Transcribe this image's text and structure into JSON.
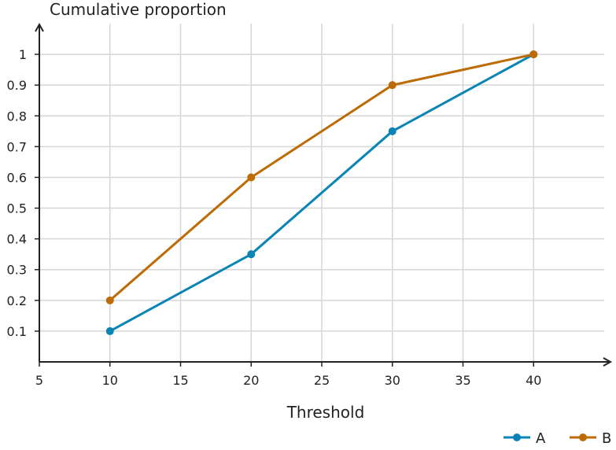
{
  "chart_data": {
    "type": "line",
    "title": "",
    "xlabel": "Threshold",
    "ylabel": "Cumulative proportion",
    "xlim": [
      5,
      45
    ],
    "ylim": [
      0,
      1.1
    ],
    "x_ticks": [
      5,
      10,
      15,
      20,
      25,
      30,
      35,
      40
    ],
    "y_ticks": [
      0.1,
      0.2,
      0.3,
      0.4,
      0.5,
      0.6,
      0.7,
      0.8,
      0.9,
      1
    ],
    "grid": true,
    "legend_position": "bottom-right",
    "series": [
      {
        "name": "A",
        "color": "#0a84b5",
        "x": [
          10,
          20,
          30,
          40
        ],
        "y": [
          0.1,
          0.35,
          0.75,
          1.0
        ]
      },
      {
        "name": "B",
        "color": "#bd6b05",
        "x": [
          10,
          20,
          30,
          40
        ],
        "y": [
          0.2,
          0.6,
          0.9,
          1.0
        ]
      }
    ]
  }
}
